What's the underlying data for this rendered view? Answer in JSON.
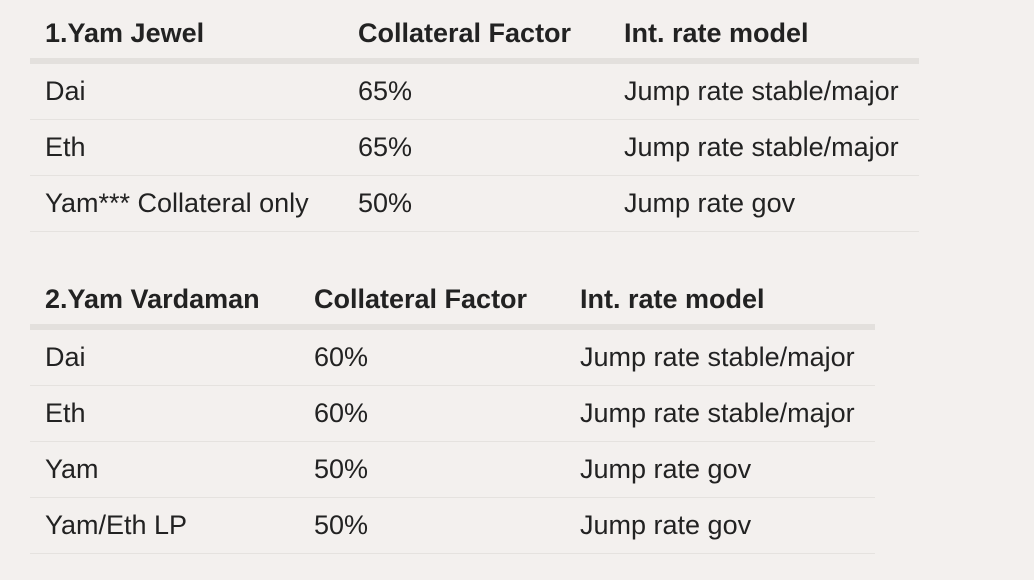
{
  "tables": [
    {
      "headers": [
        "1.Yam Jewel",
        "Collateral Factor",
        "Int. rate model"
      ],
      "rows": [
        [
          "Dai",
          "65%",
          "Jump rate stable/major"
        ],
        [
          "Eth",
          "65%",
          "Jump rate stable/major"
        ],
        [
          "Yam*** Collateral only",
          "50%",
          "Jump rate gov"
        ]
      ]
    },
    {
      "headers": [
        "2.Yam Vardaman",
        "Collateral Factor",
        "Int. rate model"
      ],
      "rows": [
        [
          "Dai",
          "60%",
          "Jump rate stable/major"
        ],
        [
          "Eth",
          "60%",
          "Jump rate stable/major"
        ],
        [
          "Yam",
          "50%",
          "Jump rate gov"
        ],
        [
          "Yam/Eth LP",
          "50%",
          "Jump rate gov"
        ]
      ]
    }
  ]
}
